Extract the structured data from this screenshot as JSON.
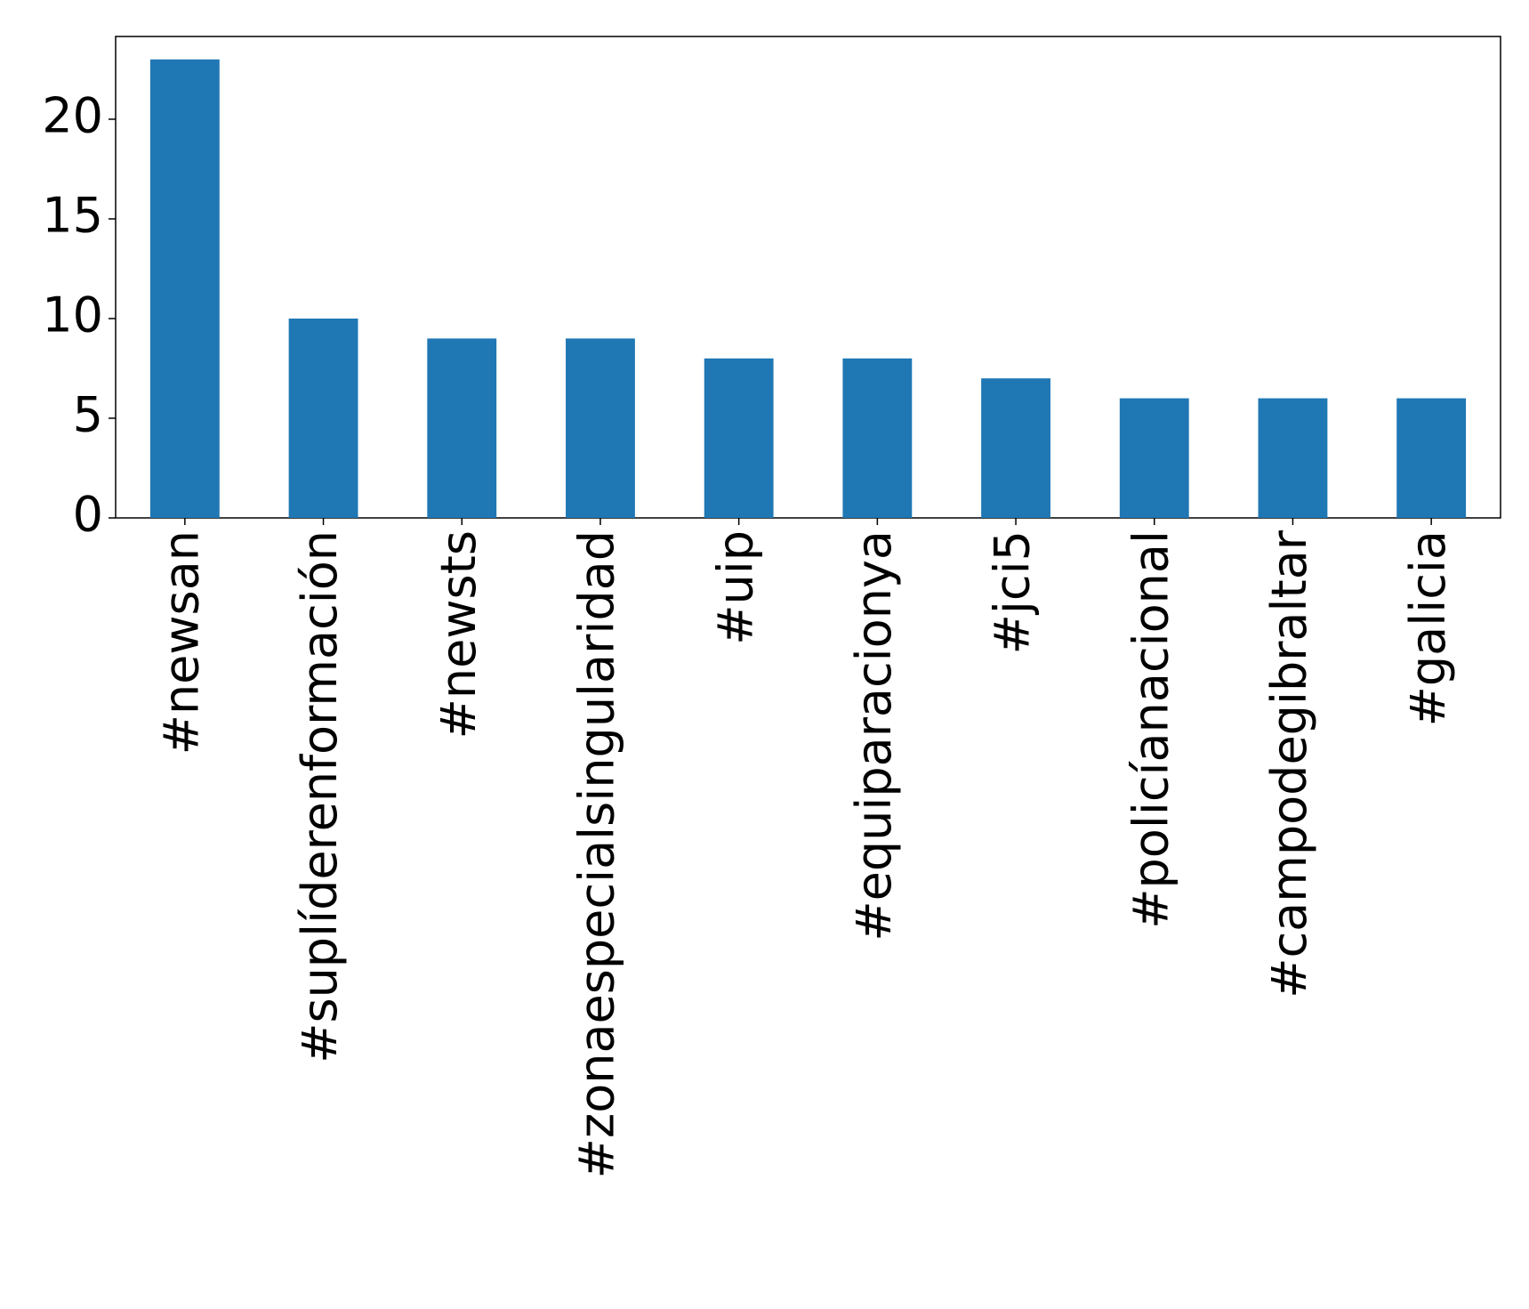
{
  "chart_data": {
    "type": "bar",
    "categories": [
      "#newsan",
      "#suplíderenformación",
      "#newsts",
      "#zonaespecialsingularidad",
      "#uip",
      "#equiparacionya",
      "#jci5",
      "#policíanacional",
      "#campodegibraltar",
      "#galicia"
    ],
    "values": [
      23,
      10,
      9,
      9,
      8,
      8,
      7,
      6,
      6,
      6
    ],
    "color": "#1f77b4",
    "ylim": [
      0,
      24.15
    ],
    "yticks": [
      0,
      5,
      10,
      15,
      20
    ],
    "grid": false
  }
}
